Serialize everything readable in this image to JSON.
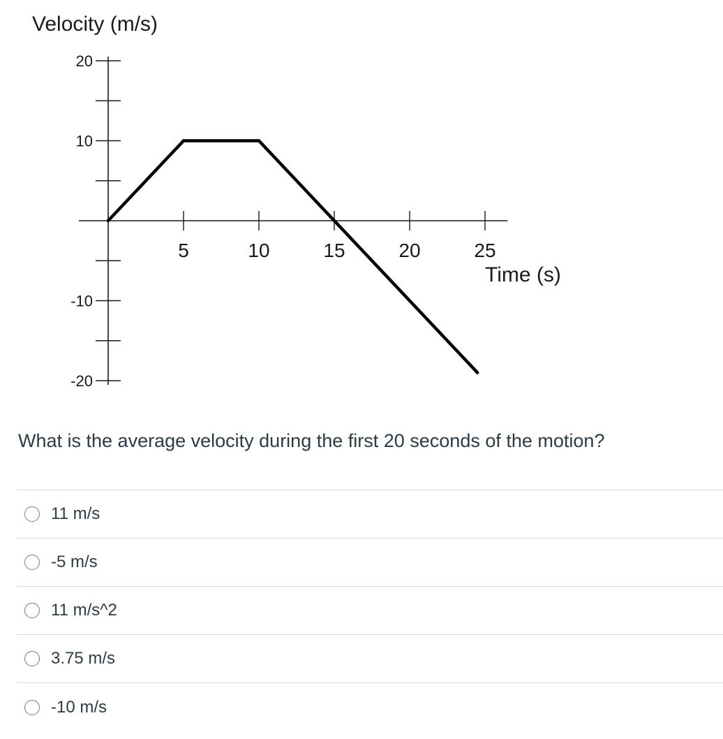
{
  "chart_data": {
    "type": "line",
    "title": "Velocity (m/s)",
    "xlabel": "Time (s)",
    "ylabel": "Velocity (m/s)",
    "x_ticks": [
      5,
      10,
      15,
      20,
      25
    ],
    "x_tick_labels": [
      "5",
      "10",
      "15",
      "20",
      "25"
    ],
    "y_ticks": [
      20,
      10,
      -10,
      -20
    ],
    "y_tick_labels": [
      "20",
      "10",
      "-10",
      "-20"
    ],
    "xlim": [
      0,
      25
    ],
    "ylim": [
      -20,
      20
    ],
    "grid": false,
    "series": [
      {
        "x": [
          0,
          5,
          10,
          15,
          24.5
        ],
        "y": [
          0,
          10,
          10,
          0,
          -19
        ]
      }
    ]
  },
  "question": {
    "text": "What is the average velocity during the first 20 seconds of the motion?"
  },
  "answers": [
    {
      "label": "11 m/s"
    },
    {
      "label": "-5 m/s"
    },
    {
      "label": "11 m/s^2"
    },
    {
      "label": "3.75 m/s"
    },
    {
      "label": "-10 m/s"
    }
  ]
}
